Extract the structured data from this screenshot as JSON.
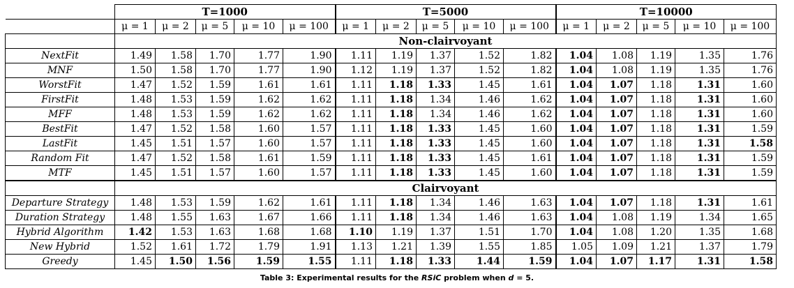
{
  "table": {
    "groups": [
      "T=1000",
      "T=5000",
      "T=10000"
    ],
    "mu_labels": [
      "μ = 1",
      "μ = 2",
      "μ = 5",
      "μ = 10",
      "μ = 100"
    ],
    "sections": [
      {
        "title": "Non-clairvoyant",
        "rows": [
          {
            "name": "NextFit",
            "values": [
              "1.49",
              "1.58",
              "1.70",
              "1.77",
              "1.90",
              "1.11",
              "1.19",
              "1.37",
              "1.52",
              "1.82",
              "1.04",
              "1.08",
              "1.19",
              "1.35",
              "1.76"
            ],
            "bold": [
              false,
              false,
              false,
              false,
              false,
              false,
              false,
              false,
              false,
              false,
              true,
              false,
              false,
              false,
              false
            ]
          },
          {
            "name": "MNF",
            "values": [
              "1.50",
              "1.58",
              "1.70",
              "1.77",
              "1.90",
              "1.12",
              "1.19",
              "1.37",
              "1.52",
              "1.82",
              "1.04",
              "1.08",
              "1.19",
              "1.35",
              "1.76"
            ],
            "bold": [
              false,
              false,
              false,
              false,
              false,
              false,
              false,
              false,
              false,
              false,
              true,
              false,
              false,
              false,
              false
            ]
          },
          {
            "name": "WorstFit",
            "values": [
              "1.47",
              "1.52",
              "1.59",
              "1.61",
              "1.61",
              "1.11",
              "1.18",
              "1.33",
              "1.45",
              "1.61",
              "1.04",
              "1.07",
              "1.18",
              "1.31",
              "1.60"
            ],
            "bold": [
              false,
              false,
              false,
              false,
              false,
              false,
              true,
              true,
              false,
              false,
              true,
              true,
              false,
              true,
              false
            ]
          },
          {
            "name": "FirstFit",
            "values": [
              "1.48",
              "1.53",
              "1.59",
              "1.62",
              "1.62",
              "1.11",
              "1.18",
              "1.34",
              "1.46",
              "1.62",
              "1.04",
              "1.07",
              "1.18",
              "1.31",
              "1.60"
            ],
            "bold": [
              false,
              false,
              false,
              false,
              false,
              false,
              true,
              false,
              false,
              false,
              true,
              true,
              false,
              true,
              false
            ]
          },
          {
            "name": "MFF",
            "values": [
              "1.48",
              "1.53",
              "1.59",
              "1.62",
              "1.62",
              "1.11",
              "1.18",
              "1.34",
              "1.46",
              "1.62",
              "1.04",
              "1.07",
              "1.18",
              "1.31",
              "1.60"
            ],
            "bold": [
              false,
              false,
              false,
              false,
              false,
              false,
              true,
              false,
              false,
              false,
              true,
              true,
              false,
              true,
              false
            ]
          },
          {
            "name": "BestFit",
            "values": [
              "1.47",
              "1.52",
              "1.58",
              "1.60",
              "1.57",
              "1.11",
              "1.18",
              "1.33",
              "1.45",
              "1.60",
              "1.04",
              "1.07",
              "1.18",
              "1.31",
              "1.59"
            ],
            "bold": [
              false,
              false,
              false,
              false,
              false,
              false,
              true,
              true,
              false,
              false,
              true,
              true,
              false,
              true,
              false
            ]
          },
          {
            "name": "LastFit",
            "values": [
              "1.45",
              "1.51",
              "1.57",
              "1.60",
              "1.57",
              "1.11",
              "1.18",
              "1.33",
              "1.45",
              "1.60",
              "1.04",
              "1.07",
              "1.18",
              "1.31",
              "1.58"
            ],
            "bold": [
              false,
              false,
              false,
              false,
              false,
              false,
              true,
              true,
              false,
              false,
              true,
              true,
              false,
              true,
              true
            ]
          },
          {
            "name": "Random Fit",
            "values": [
              "1.47",
              "1.52",
              "1.58",
              "1.61",
              "1.59",
              "1.11",
              "1.18",
              "1.33",
              "1.45",
              "1.61",
              "1.04",
              "1.07",
              "1.18",
              "1.31",
              "1.59"
            ],
            "bold": [
              false,
              false,
              false,
              false,
              false,
              false,
              true,
              true,
              false,
              false,
              true,
              true,
              false,
              true,
              false
            ]
          },
          {
            "name": "MTF",
            "values": [
              "1.45",
              "1.51",
              "1.57",
              "1.60",
              "1.57",
              "1.11",
              "1.18",
              "1.33",
              "1.45",
              "1.60",
              "1.04",
              "1.07",
              "1.18",
              "1.31",
              "1.59"
            ],
            "bold": [
              false,
              false,
              false,
              false,
              false,
              false,
              true,
              true,
              false,
              false,
              true,
              true,
              false,
              true,
              false
            ]
          }
        ]
      },
      {
        "title": "Clairvoyant",
        "rows": [
          {
            "name": "Departure Strategy",
            "values": [
              "1.48",
              "1.53",
              "1.59",
              "1.62",
              "1.61",
              "1.11",
              "1.18",
              "1.34",
              "1.46",
              "1.63",
              "1.04",
              "1.07",
              "1.18",
              "1.31",
              "1.61"
            ],
            "bold": [
              false,
              false,
              false,
              false,
              false,
              false,
              true,
              false,
              false,
              false,
              true,
              true,
              false,
              true,
              false
            ]
          },
          {
            "name": "Duration Strategy",
            "values": [
              "1.48",
              "1.55",
              "1.63",
              "1.67",
              "1.66",
              "1.11",
              "1.18",
              "1.34",
              "1.46",
              "1.63",
              "1.04",
              "1.08",
              "1.19",
              "1.34",
              "1.65"
            ],
            "bold": [
              false,
              false,
              false,
              false,
              false,
              false,
              true,
              false,
              false,
              false,
              true,
              false,
              false,
              false,
              false
            ]
          },
          {
            "name": "Hybrid Algorithm",
            "values": [
              "1.42",
              "1.53",
              "1.63",
              "1.68",
              "1.68",
              "1.10",
              "1.19",
              "1.37",
              "1.51",
              "1.70",
              "1.04",
              "1.08",
              "1.20",
              "1.35",
              "1.68"
            ],
            "bold": [
              true,
              false,
              false,
              false,
              false,
              true,
              false,
              false,
              false,
              false,
              true,
              false,
              false,
              false,
              false
            ]
          },
          {
            "name": "New Hybrid",
            "values": [
              "1.52",
              "1.61",
              "1.72",
              "1.79",
              "1.91",
              "1.13",
              "1.21",
              "1.39",
              "1.55",
              "1.85",
              "1.05",
              "1.09",
              "1.21",
              "1.37",
              "1.79"
            ],
            "bold": [
              false,
              false,
              false,
              false,
              false,
              false,
              false,
              false,
              false,
              false,
              false,
              false,
              false,
              false,
              false
            ]
          },
          {
            "name": "Greedy",
            "values": [
              "1.45",
              "1.50",
              "1.56",
              "1.59",
              "1.55",
              "1.11",
              "1.18",
              "1.33",
              "1.44",
              "1.59",
              "1.04",
              "1.07",
              "1.17",
              "1.31",
              "1.58"
            ],
            "bold": [
              false,
              true,
              true,
              true,
              true,
              false,
              true,
              true,
              true,
              true,
              true,
              true,
              true,
              true,
              true
            ]
          }
        ]
      }
    ]
  },
  "caption": {
    "prefix": "Table 3: Experimental results for the ",
    "emph": "RSiC",
    "middle": " problem when ",
    "var": "d",
    "suffix": " = 5."
  }
}
